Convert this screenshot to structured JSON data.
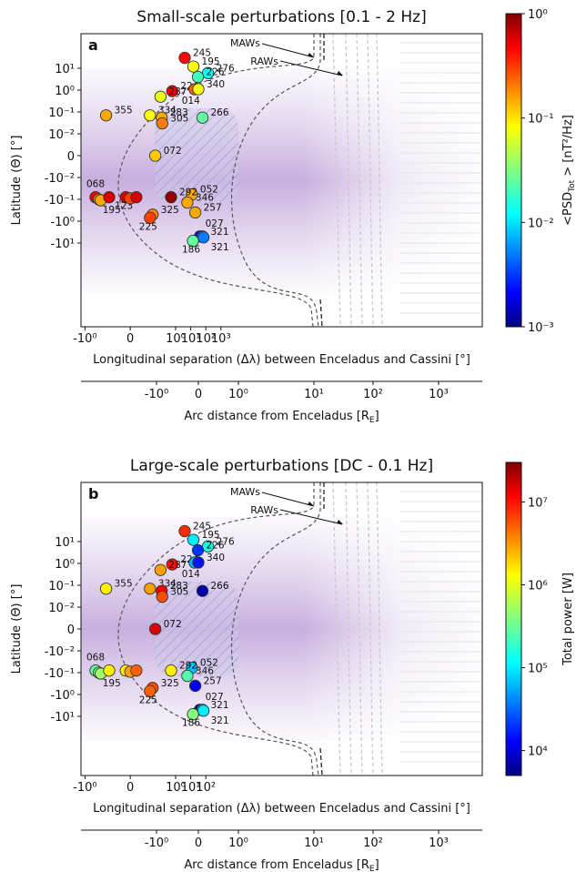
{
  "chart_data": [
    {
      "type": "scatter",
      "panel_letter": "a",
      "title": "Small-scale perturbations [0.1 - 2 Hz]",
      "xlabel": "Longitudinal separation (Δλ) between Enceladus and Cassini [°]",
      "ylabel": "Latitude (Θ) [°]",
      "x2label": "Arc distance from Enceladus [R",
      "x2label_sub": "E",
      "x2label_end": "]",
      "xticks": [
        "-10⁰",
        "0",
        "10⁰",
        "10¹",
        "10²",
        "10³"
      ],
      "yticks": [
        "10¹",
        "10⁰",
        "10⁻¹",
        "10⁻²",
        "0",
        "-10⁻²",
        "-10⁻¹",
        "-10⁰",
        "-10¹"
      ],
      "x2ticks": [
        "-10⁰",
        "0",
        "10⁰",
        "10¹",
        "10²",
        "10³"
      ],
      "x_scale": "symlog",
      "y_scale": "symlog",
      "annotations": [
        "MAWs",
        "RAWs"
      ],
      "colorbar": {
        "label": "<PSD",
        "label_sub": "Tot",
        "label_end": "> [nT²/Hz]",
        "ticks": [
          "10⁰",
          "10⁻¹",
          "10⁻²",
          "10⁻³"
        ],
        "scale": "log",
        "range": [
          0.001,
          1
        ]
      },
      "points": [
        {
          "label": "245",
          "x": 4.0,
          "y": 30,
          "c": 0.45
        },
        {
          "label": "195",
          "x": 15,
          "y": 12,
          "c": 0.08
        },
        {
          "label": "276",
          "x": 140,
          "y": 6,
          "c": 0.013
        },
        {
          "label": "226",
          "x": 30,
          "y": 4,
          "c": 0.02
        },
        {
          "label": "224",
          "x": 0.6,
          "y": 0.9,
          "c": 0.5
        },
        {
          "label": "014",
          "x": 18,
          "y": 1.1,
          "c": 0.25
        },
        {
          "label": "340",
          "x": 32,
          "y": 1.1,
          "c": 0.08
        },
        {
          "label": "287",
          "x": 0.1,
          "y": 0.5,
          "c": 0.07
        },
        {
          "label": "355",
          "x": -0.04,
          "y": 0.07,
          "c": 0.15
        },
        {
          "label": "334",
          "x": 0.02,
          "y": 0.07,
          "c": 0.08
        },
        {
          "label": "283",
          "x": 0.12,
          "y": 0.055,
          "c": 0.15
        },
        {
          "label": "305",
          "x": 0.13,
          "y": 0.03,
          "c": 0.2
        },
        {
          "label": "266",
          "x": 60,
          "y": 0.055,
          "c": 0.025
        },
        {
          "label": "072",
          "x": 0.045,
          "y": 0,
          "c": 0.12
        },
        {
          "label": "052",
          "x": 12,
          "y": -0.06,
          "c": 0.15
        },
        {
          "label": "068",
          "x": -0.2,
          "y": -0.08,
          "c": 0.5
        },
        {
          "label": "",
          "x": -0.12,
          "y": -0.1,
          "c": 0.2
        },
        {
          "label": "195",
          "x": -0.09,
          "y": -0.11,
          "c": 0.15
        },
        {
          "label": "",
          "x": -0.025,
          "y": -0.08,
          "c": 0.6
        },
        {
          "label": "123",
          "x": -0.003,
          "y": -0.08,
          "c": 0.6
        },
        {
          "label": "",
          "x": 0.0,
          "y": -0.09,
          "c": 0.3
        },
        {
          "label": "",
          "x": 0.004,
          "y": -0.08,
          "c": 0.6
        },
        {
          "label": "292",
          "x": 0.5,
          "y": -0.08,
          "c": 0.9
        },
        {
          "label": "346",
          "x": 6,
          "y": -0.14,
          "c": 0.15
        },
        {
          "label": "257",
          "x": 20,
          "y": -0.4,
          "c": 0.15
        },
        {
          "label": "325",
          "x": 0.03,
          "y": -0.5,
          "c": 0.2
        },
        {
          "label": "225",
          "x": 0.02,
          "y": -0.7,
          "c": 0.3
        },
        {
          "label": "027",
          "x": 40,
          "y": -5,
          "c": 0.002
        },
        {
          "label": "321",
          "x": 60,
          "y": -5,
          "c": 0.004
        },
        {
          "label": "321",
          "x": 70,
          "y": -5.5,
          "c": 0.005
        },
        {
          "label": "186",
          "x": 14,
          "y": -8,
          "c": 0.025
        }
      ]
    },
    {
      "type": "scatter",
      "panel_letter": "b",
      "title": "Large-scale perturbations [DC - 0.1 Hz]",
      "xlabel": "Longitudinal separation (Δλ) between Enceladus and Cassini [°]",
      "ylabel": "Latitude (Θ) [°]",
      "x2label": "Arc distance from Enceladus [R",
      "x2label_sub": "E",
      "x2label_end": "]",
      "xticks": [
        "-10⁰",
        "0",
        "10⁰",
        "10¹",
        "10²"
      ],
      "yticks": [
        "10¹",
        "10⁰",
        "10⁻¹",
        "10⁻²",
        "0",
        "-10⁻²",
        "-10⁻¹",
        "-10⁰",
        "-10¹"
      ],
      "x2ticks": [
        "-10⁰",
        "0",
        "10⁰",
        "10¹",
        "10²",
        "10³"
      ],
      "x_scale": "symlog",
      "y_scale": "symlog",
      "annotations": [
        "MAWs",
        "RAWs"
      ],
      "colorbar": {
        "label": "Total power [W]",
        "ticks": [
          "10⁷",
          "10⁶",
          "10⁵",
          "10⁴"
        ],
        "scale": "log",
        "range": [
          5000,
          30000000
        ]
      },
      "points": [
        {
          "label": "245",
          "x": 4.0,
          "y": 30,
          "c": 8000000
        },
        {
          "label": "195",
          "x": 15,
          "y": 12,
          "c": 100000
        },
        {
          "label": "276",
          "x": 140,
          "y": 6,
          "c": 150000
        },
        {
          "label": "226",
          "x": 30,
          "y": 4,
          "c": 20000
        },
        {
          "label": "224",
          "x": 0.6,
          "y": 0.9,
          "c": 10000000
        },
        {
          "label": "014",
          "x": 18,
          "y": 1.1,
          "c": 60000
        },
        {
          "label": "340",
          "x": 32,
          "y": 1.1,
          "c": 15000
        },
        {
          "label": "287",
          "x": 0.1,
          "y": 0.5,
          "c": 3000000
        },
        {
          "label": "355",
          "x": -0.04,
          "y": 0.07,
          "c": 1500000
        },
        {
          "label": "334",
          "x": 0.02,
          "y": 0.07,
          "c": 3000000
        },
        {
          "label": "283",
          "x": 0.12,
          "y": 0.055,
          "c": 12000000
        },
        {
          "label": "305",
          "x": 0.13,
          "y": 0.03,
          "c": 6000000
        },
        {
          "label": "266",
          "x": 60,
          "y": 0.055,
          "c": 7000
        },
        {
          "label": "072",
          "x": 0.045,
          "y": 0,
          "c": 15000000
        },
        {
          "label": "052",
          "x": 12,
          "y": -0.06,
          "c": 70000
        },
        {
          "label": "068",
          "x": -0.2,
          "y": -0.08,
          "c": 300000
        },
        {
          "label": "",
          "x": -0.12,
          "y": -0.1,
          "c": 400000
        },
        {
          "label": "195",
          "x": -0.09,
          "y": -0.11,
          "c": 500000
        },
        {
          "label": "",
          "x": -0.025,
          "y": -0.08,
          "c": 1500000
        },
        {
          "label": "",
          "x": -0.003,
          "y": -0.08,
          "c": 1500000
        },
        {
          "label": "",
          "x": 0.0,
          "y": -0.09,
          "c": 3000000
        },
        {
          "label": "",
          "x": 0.004,
          "y": -0.08,
          "c": 5000000
        },
        {
          "label": "292",
          "x": 0.5,
          "y": -0.08,
          "c": 1500000
        },
        {
          "label": "346",
          "x": 6,
          "y": -0.14,
          "c": 250000
        },
        {
          "label": "257",
          "x": 20,
          "y": -0.4,
          "c": 12000
        },
        {
          "label": "325",
          "x": 0.03,
          "y": -0.5,
          "c": 6000000
        },
        {
          "label": "225",
          "x": 0.02,
          "y": -0.7,
          "c": 5000000
        },
        {
          "label": "027",
          "x": 40,
          "y": -5,
          "c": 6000
        },
        {
          "label": "321",
          "x": 60,
          "y": -5,
          "c": 80000
        },
        {
          "label": "321",
          "x": 70,
          "y": -5.5,
          "c": 100000
        },
        {
          "label": "186",
          "x": 14,
          "y": -8,
          "c": 400000
        }
      ]
    }
  ]
}
